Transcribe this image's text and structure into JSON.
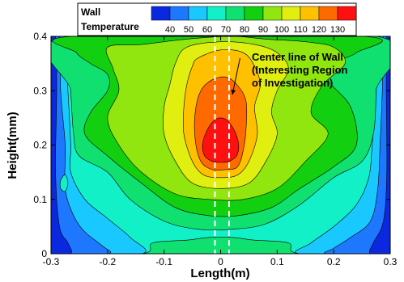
{
  "chart_data": {
    "type": "contour",
    "xlabel": "Length(m)",
    "ylabel": "Height(mm)",
    "xlim": [
      -0.3,
      0.3
    ],
    "ylim": [
      0,
      0.4
    ],
    "x_ticks": [
      "-0.3",
      "-0.2",
      "-0.1",
      "0",
      "0.1",
      "0.2",
      "0.3"
    ],
    "y_ticks": [
      "0",
      "0.1",
      "0.2",
      "0.3",
      "0.4"
    ],
    "legend": {
      "title_line1": "Wall",
      "title_line2": "Temperature",
      "levels": [
        40,
        50,
        60,
        70,
        80,
        90,
        100,
        110,
        120,
        130
      ],
      "colors": [
        "#0a28e0",
        "#1e78ff",
        "#18c8ff",
        "#12f0c8",
        "#10e070",
        "#12d010",
        "#90e60e",
        "#e0ee10",
        "#ffc000",
        "#ff6a00",
        "#ff1010"
      ],
      "placement": "top"
    },
    "center_lines_x": [
      -0.01,
      0.015
    ],
    "annotation": {
      "line1": "Center line of Wall",
      "line2": "(Interesting Region",
      "line3": "of Investigation)",
      "target": [
        0.015,
        0.3
      ],
      "text_at": [
        0.04,
        0.35
      ]
    },
    "contour_regions": [
      {
        "level": 0,
        "side": "left",
        "points": [
          [
            -0.3,
            0
          ],
          [
            -0.3,
            0.4
          ],
          [
            -0.292,
            0.4
          ],
          [
            -0.29,
            0.3
          ],
          [
            -0.292,
            0.15
          ],
          [
            -0.285,
            0.05
          ],
          [
            -0.27,
            0.02
          ],
          [
            -0.265,
            0
          ]
        ]
      },
      {
        "level": 0,
        "side": "right",
        "points": [
          [
            0.3,
            0
          ],
          [
            0.3,
            0.4
          ],
          [
            0.294,
            0.4
          ],
          [
            0.293,
            0.3
          ],
          [
            0.294,
            0.15
          ],
          [
            0.288,
            0.06
          ],
          [
            0.27,
            0.02
          ],
          [
            0.265,
            0
          ]
        ]
      },
      {
        "level": 1,
        "side": "left",
        "points": [
          [
            -0.3,
            0
          ],
          [
            -0.3,
            0.4
          ],
          [
            -0.285,
            0.4
          ],
          [
            -0.283,
            0.3
          ],
          [
            -0.275,
            0.2
          ],
          [
            -0.275,
            0.12
          ],
          [
            -0.26,
            0.07
          ],
          [
            -0.24,
            0.04
          ],
          [
            -0.21,
            0.015
          ],
          [
            -0.2,
            0
          ]
        ]
      },
      {
        "level": 1,
        "side": "right",
        "points": [
          [
            0.3,
            0
          ],
          [
            0.3,
            0.4
          ],
          [
            0.288,
            0.4
          ],
          [
            0.286,
            0.3
          ],
          [
            0.282,
            0.2
          ],
          [
            0.278,
            0.12
          ],
          [
            0.265,
            0.06
          ],
          [
            0.23,
            0.03
          ],
          [
            0.2,
            0.01
          ],
          [
            0.19,
            0
          ]
        ]
      },
      {
        "level": 2,
        "side": "left",
        "points": [
          [
            -0.3,
            0
          ],
          [
            -0.3,
            0.4
          ],
          [
            -0.275,
            0.4
          ],
          [
            -0.27,
            0.3
          ],
          [
            -0.265,
            0.2
          ],
          [
            -0.265,
            0.15
          ],
          [
            -0.24,
            0.1
          ],
          [
            -0.2,
            0.065
          ],
          [
            -0.16,
            0.03
          ],
          [
            -0.14,
            0
          ]
        ]
      },
      {
        "level": 2,
        "side": "right",
        "points": [
          [
            0.3,
            0
          ],
          [
            0.3,
            0.4
          ],
          [
            0.28,
            0.4
          ],
          [
            0.275,
            0.3
          ],
          [
            0.268,
            0.2
          ],
          [
            0.262,
            0.14
          ],
          [
            0.24,
            0.09
          ],
          [
            0.2,
            0.05
          ],
          [
            0.16,
            0.02
          ],
          [
            0.14,
            0
          ]
        ]
      },
      {
        "level": 3,
        "side": "all",
        "points": [
          [
            -0.3,
            0
          ],
          [
            -0.3,
            0.4
          ],
          [
            0.3,
            0.4
          ],
          [
            0.3,
            0
          ],
          [
            0.14,
            0
          ],
          [
            0.12,
            0.02
          ],
          [
            0.06,
            0.025
          ],
          [
            0.02,
            0.03
          ],
          [
            -0.02,
            0.03
          ],
          [
            -0.06,
            0.025
          ],
          [
            -0.12,
            0.02
          ],
          [
            -0.14,
            0
          ]
        ]
      },
      {
        "level": 4,
        "side": "band",
        "points": [
          [
            -0.27,
            0.4
          ],
          [
            -0.265,
            0.3
          ],
          [
            -0.26,
            0.22
          ],
          [
            -0.25,
            0.18
          ],
          [
            -0.2,
            0.15
          ],
          [
            -0.16,
            0.1
          ],
          [
            -0.1,
            0.06
          ],
          [
            -0.04,
            0.045
          ],
          [
            0.02,
            0.045
          ],
          [
            0.08,
            0.055
          ],
          [
            0.14,
            0.09
          ],
          [
            0.2,
            0.14
          ],
          [
            0.25,
            0.17
          ],
          [
            0.27,
            0.22
          ],
          [
            0.275,
            0.3
          ],
          [
            0.275,
            0.4
          ]
        ]
      },
      {
        "level": 5,
        "side": "band",
        "points": [
          [
            -0.26,
            0.4
          ],
          [
            -0.255,
            0.37
          ],
          [
            -0.23,
            0.35
          ],
          [
            -0.2,
            0.33
          ],
          [
            -0.2,
            0.3
          ],
          [
            -0.23,
            0.26
          ],
          [
            -0.24,
            0.22
          ],
          [
            -0.2,
            0.18
          ],
          [
            -0.14,
            0.13
          ],
          [
            -0.08,
            0.085
          ],
          [
            -0.02,
            0.07
          ],
          [
            0.03,
            0.07
          ],
          [
            0.09,
            0.085
          ],
          [
            0.14,
            0.12
          ],
          [
            0.2,
            0.16
          ],
          [
            0.24,
            0.2
          ],
          [
            0.23,
            0.27
          ],
          [
            0.19,
            0.32
          ],
          [
            0.2,
            0.35
          ],
          [
            0.24,
            0.37
          ],
          [
            0.25,
            0.4
          ]
        ]
      },
      {
        "level": 6,
        "side": "blob",
        "points": [
          [
            -0.2,
            0.38
          ],
          [
            -0.14,
            0.385
          ],
          [
            -0.06,
            0.395
          ],
          [
            0.02,
            0.4
          ],
          [
            0.08,
            0.395
          ],
          [
            0.15,
            0.39
          ],
          [
            0.2,
            0.38
          ],
          [
            0.22,
            0.35
          ],
          [
            0.18,
            0.31
          ],
          [
            0.16,
            0.26
          ],
          [
            0.19,
            0.22
          ],
          [
            0.15,
            0.17
          ],
          [
            0.1,
            0.12
          ],
          [
            0.04,
            0.1
          ],
          [
            -0.02,
            0.1
          ],
          [
            -0.08,
            0.11
          ],
          [
            -0.14,
            0.15
          ],
          [
            -0.18,
            0.2
          ],
          [
            -0.2,
            0.25
          ],
          [
            -0.18,
            0.3
          ],
          [
            -0.19,
            0.34
          ]
        ]
      },
      {
        "level": 7,
        "side": "blob",
        "points": [
          [
            -0.06,
            0.38
          ],
          [
            0.0,
            0.39
          ],
          [
            0.06,
            0.385
          ],
          [
            0.1,
            0.37
          ],
          [
            0.12,
            0.34
          ],
          [
            0.1,
            0.3
          ],
          [
            0.09,
            0.26
          ],
          [
            0.1,
            0.22
          ],
          [
            0.08,
            0.17
          ],
          [
            0.05,
            0.13
          ],
          [
            0.0,
            0.12
          ],
          [
            -0.05,
            0.13
          ],
          [
            -0.08,
            0.17
          ],
          [
            -0.1,
            0.22
          ],
          [
            -0.1,
            0.27
          ],
          [
            -0.09,
            0.31
          ],
          [
            -0.08,
            0.35
          ]
        ]
      },
      {
        "level": 8,
        "side": "blob",
        "points": [
          [
            -0.04,
            0.36
          ],
          [
            0.0,
            0.375
          ],
          [
            0.04,
            0.37
          ],
          [
            0.06,
            0.345
          ],
          [
            0.07,
            0.31
          ],
          [
            0.06,
            0.27
          ],
          [
            0.065,
            0.22
          ],
          [
            0.05,
            0.17
          ],
          [
            0.03,
            0.145
          ],
          [
            0.0,
            0.14
          ],
          [
            -0.03,
            0.145
          ],
          [
            -0.05,
            0.17
          ],
          [
            -0.065,
            0.22
          ],
          [
            -0.065,
            0.27
          ],
          [
            -0.06,
            0.31
          ],
          [
            -0.05,
            0.345
          ]
        ]
      },
      {
        "level": 9,
        "side": "blob",
        "points": [
          [
            -0.015,
            0.32
          ],
          [
            0.01,
            0.325
          ],
          [
            0.03,
            0.31
          ],
          [
            0.045,
            0.28
          ],
          [
            0.045,
            0.23
          ],
          [
            0.04,
            0.19
          ],
          [
            0.03,
            0.16
          ],
          [
            0.01,
            0.155
          ],
          [
            -0.015,
            0.155
          ],
          [
            -0.035,
            0.17
          ],
          [
            -0.045,
            0.21
          ],
          [
            -0.045,
            0.26
          ],
          [
            -0.035,
            0.3
          ]
        ]
      },
      {
        "level": 10,
        "side": "blob",
        "points": [
          [
            0.0,
            0.25
          ],
          [
            0.012,
            0.245
          ],
          [
            0.025,
            0.225
          ],
          [
            0.032,
            0.2
          ],
          [
            0.028,
            0.18
          ],
          [
            0.015,
            0.17
          ],
          [
            0.0,
            0.168
          ],
          [
            -0.015,
            0.17
          ],
          [
            -0.028,
            0.18
          ],
          [
            -0.032,
            0.2
          ],
          [
            -0.025,
            0.225
          ],
          [
            -0.012,
            0.245
          ]
        ]
      },
      {
        "level": 3,
        "side": "spot",
        "points": [
          [
            -0.283,
            0.135
          ],
          [
            -0.275,
            0.145
          ],
          [
            -0.27,
            0.13
          ],
          [
            -0.275,
            0.115
          ],
          [
            -0.283,
            0.12
          ]
        ]
      }
    ]
  }
}
